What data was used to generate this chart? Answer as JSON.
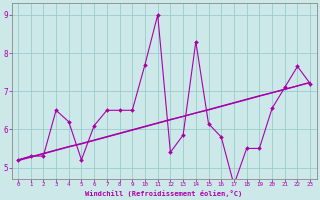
{
  "xlabel": "Windchill (Refroidissement éolien,°C)",
  "bg_color": "#cce8e8",
  "grid_color": "#99cccc",
  "line_color": "#aa00aa",
  "x_data": [
    0,
    1,
    2,
    3,
    4,
    5,
    6,
    7,
    8,
    9,
    10,
    11,
    12,
    13,
    14,
    15,
    16,
    17,
    18,
    19,
    20,
    21,
    22,
    23
  ],
  "y_jagged": [
    5.2,
    5.3,
    5.3,
    6.5,
    6.2,
    5.2,
    6.1,
    6.5,
    6.5,
    6.5,
    7.7,
    9.0,
    5.4,
    5.85,
    8.3,
    6.15,
    5.8,
    4.55,
    5.5,
    5.5,
    6.55,
    7.1,
    7.65,
    7.2
  ],
  "y_trend1": [
    5.18,
    5.27,
    5.36,
    5.45,
    5.54,
    5.62,
    5.71,
    5.8,
    5.89,
    5.98,
    6.07,
    6.16,
    6.25,
    6.34,
    6.43,
    6.51,
    6.6,
    6.69,
    6.78,
    6.87,
    6.96,
    7.05,
    7.14,
    7.23
  ],
  "y_trend2": [
    5.2,
    5.28,
    5.37,
    5.46,
    5.55,
    5.63,
    5.72,
    5.81,
    5.9,
    5.99,
    6.08,
    6.17,
    6.26,
    6.34,
    6.43,
    6.52,
    6.61,
    6.7,
    6.79,
    6.88,
    6.96,
    7.05,
    7.14,
    7.23
  ],
  "ylim": [
    4.7,
    9.3
  ],
  "xlim": [
    -0.5,
    23.5
  ],
  "yticks": [
    5,
    6,
    7,
    8,
    9
  ],
  "xticks": [
    0,
    1,
    2,
    3,
    4,
    5,
    6,
    7,
    8,
    9,
    10,
    11,
    12,
    13,
    14,
    15,
    16,
    17,
    18,
    19,
    20,
    21,
    22,
    23
  ]
}
